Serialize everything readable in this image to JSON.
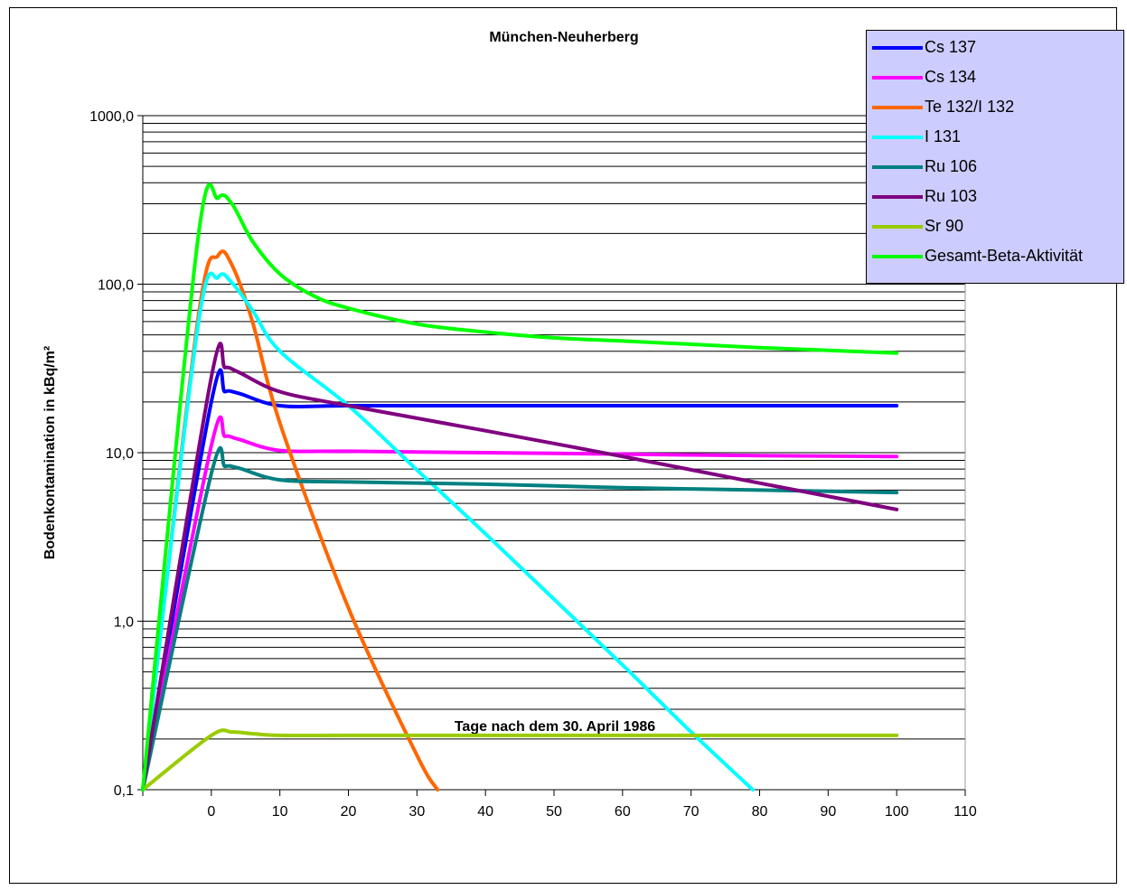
{
  "chart_data": {
    "type": "line",
    "title": "München-Neuherberg",
    "xlabel": "Tage nach dem 30. April 1986",
    "ylabel": "Bodenkontamination in kBq/m²",
    "y_scale": "log",
    "ylim": [
      0.1,
      1000
    ],
    "xlim": [
      -10,
      110
    ],
    "x_ticks": [
      0,
      10,
      20,
      30,
      40,
      50,
      60,
      70,
      80,
      90,
      100,
      110
    ],
    "x_tick_labels": [
      "0",
      "10",
      "20",
      "30",
      "40",
      "50",
      "60",
      "70",
      "80",
      "90",
      "100",
      "110"
    ],
    "y_ticks": [
      0.1,
      1,
      10,
      100,
      1000
    ],
    "y_tick_labels": [
      "0,1",
      "1,0",
      "10,0",
      "100,0",
      "1000,0"
    ],
    "grid": "horizontal",
    "legend_placement": "top-right",
    "series": [
      {
        "name": "Cs 137",
        "color": "#0000ff",
        "x": [
          -10,
          0,
          2,
          4,
          10,
          20,
          40,
          60,
          80,
          100
        ],
        "y": [
          0.1,
          20,
          23,
          22.5,
          19,
          19,
          19,
          19,
          19,
          19
        ]
      },
      {
        "name": "Cs 134",
        "color": "#ff00ff",
        "x": [
          -10,
          0,
          2,
          4,
          10,
          20,
          40,
          60,
          80,
          100
        ],
        "y": [
          0.1,
          11,
          12.5,
          12,
          10.3,
          10.2,
          10,
          9.8,
          9.6,
          9.5
        ]
      },
      {
        "name": "Te 132/I 132",
        "color": "#ff6600",
        "x": [
          -10,
          -2,
          1,
          3,
          6,
          10,
          20,
          30,
          33
        ],
        "y": [
          0.1,
          60,
          148,
          130,
          60,
          15,
          1.2,
          0.16,
          0.1
        ]
      },
      {
        "name": "I 131",
        "color": "#00ffff",
        "x": [
          -10,
          -2,
          1,
          3,
          6,
          10,
          20,
          30,
          40,
          50,
          60,
          70,
          79
        ],
        "y": [
          0.1,
          55,
          110,
          102,
          70,
          40,
          19,
          7.9,
          3.3,
          1.35,
          0.55,
          0.22,
          0.1
        ]
      },
      {
        "name": "Ru 106",
        "color": "#008080",
        "x": [
          -10,
          0,
          2,
          4,
          10,
          20,
          40,
          60,
          80,
          100
        ],
        "y": [
          0.1,
          7.5,
          8.3,
          8.1,
          6.9,
          6.7,
          6.5,
          6.2,
          6.0,
          5.8
        ]
      },
      {
        "name": "Ru 103",
        "color": "#800080",
        "x": [
          -10,
          0,
          2,
          4,
          10,
          20,
          40,
          60,
          80,
          100
        ],
        "y": [
          0.1,
          28,
          32,
          30,
          23,
          19,
          13.5,
          9.5,
          6.6,
          4.6
        ]
      },
      {
        "name": "Sr 90",
        "color": "#99cc00",
        "x": [
          -10,
          0,
          3,
          6,
          10,
          20,
          40,
          60,
          80,
          100
        ],
        "y": [
          0.1,
          0.21,
          0.22,
          0.215,
          0.21,
          0.21,
          0.21,
          0.21,
          0.21,
          0.21
        ]
      },
      {
        "name": "Gesamt-Beta-Aktivität",
        "color": "#00ff00",
        "x": [
          -10,
          -2,
          1,
          3,
          6,
          10,
          15,
          20,
          30,
          40,
          50,
          60,
          70,
          80,
          90,
          100
        ],
        "y": [
          0.1,
          180,
          325,
          300,
          180,
          115,
          85,
          72,
          58,
          52,
          48,
          46,
          44,
          42,
          40.5,
          39
        ]
      }
    ]
  }
}
